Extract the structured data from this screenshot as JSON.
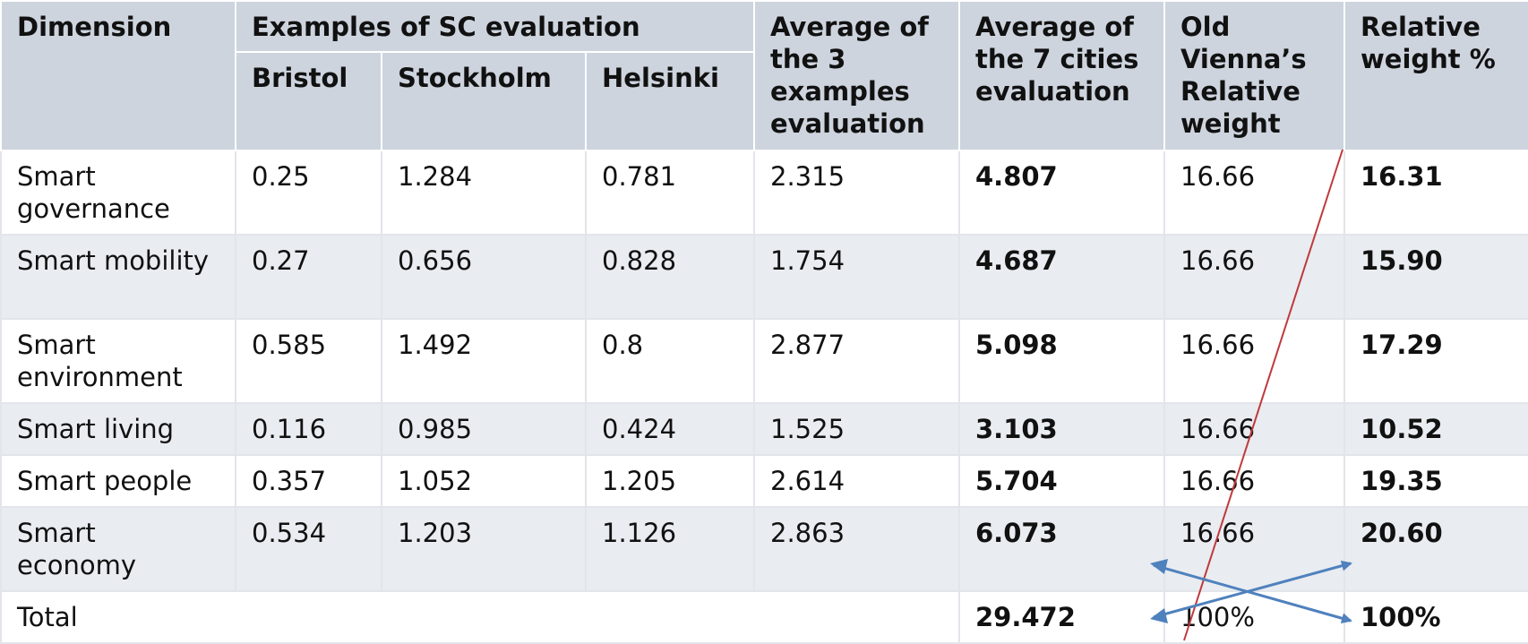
{
  "headers": {
    "dimension": "Dimension",
    "examples": "Examples of SC evaluation",
    "bristol": "Bristol",
    "stockholm": "Stockholm",
    "helsinki": "Helsinki",
    "avg3": "Average of the 3 examples evaluation",
    "avg7": "Average of the 7 cities evaluation",
    "old": "Old Vienna’s Relative weight",
    "rel": "Relative weight %"
  },
  "rows": [
    {
      "dimension": "Smart governance",
      "bristol": "0.25",
      "stockholm": "1.284",
      "helsinki": "0.781",
      "avg3": "2.315",
      "avg7": "4.807",
      "old": "16.66",
      "rel": "16.31"
    },
    {
      "dimension": "Smart mobility",
      "bristol": "0.27",
      "stockholm": "0.656",
      "helsinki": "0.828",
      "avg3": "1.754",
      "avg7": "4.687",
      "old": "16.66",
      "rel": "15.90"
    },
    {
      "dimension": "Smart environment",
      "bristol": "0.585",
      "stockholm": "1.492",
      "helsinki": "0.8",
      "avg3": "2.877",
      "avg7": "5.098",
      "old": "16.66",
      "rel": "17.29"
    },
    {
      "dimension": "Smart living",
      "bristol": "0.116",
      "stockholm": "0.985",
      "helsinki": "0.424",
      "avg3": "1.525",
      "avg7": "3.103",
      "old": "16.66",
      "rel": "10.52"
    },
    {
      "dimension": "Smart people",
      "bristol": "0.357",
      "stockholm": "1.052",
      "helsinki": "1.205",
      "avg3": "2.614",
      "avg7": "5.704",
      "old": "16.66",
      "rel": "19.35"
    },
    {
      "dimension": "Smart economy",
      "bristol": "0.534",
      "stockholm": "1.203",
      "helsinki": "1.126",
      "avg3": "2.863",
      "avg7": "6.073",
      "old": "16.66",
      "rel": "20.60"
    }
  ],
  "total": {
    "label": "Total",
    "avg7": "29.472",
    "old": "100%",
    "rel": "100%"
  },
  "colors": {
    "header_bg": "#cdd4de",
    "alt_row_bg": "#e9ecf1",
    "strike_line": "#c0393b",
    "arrow": "#4f81bd"
  }
}
